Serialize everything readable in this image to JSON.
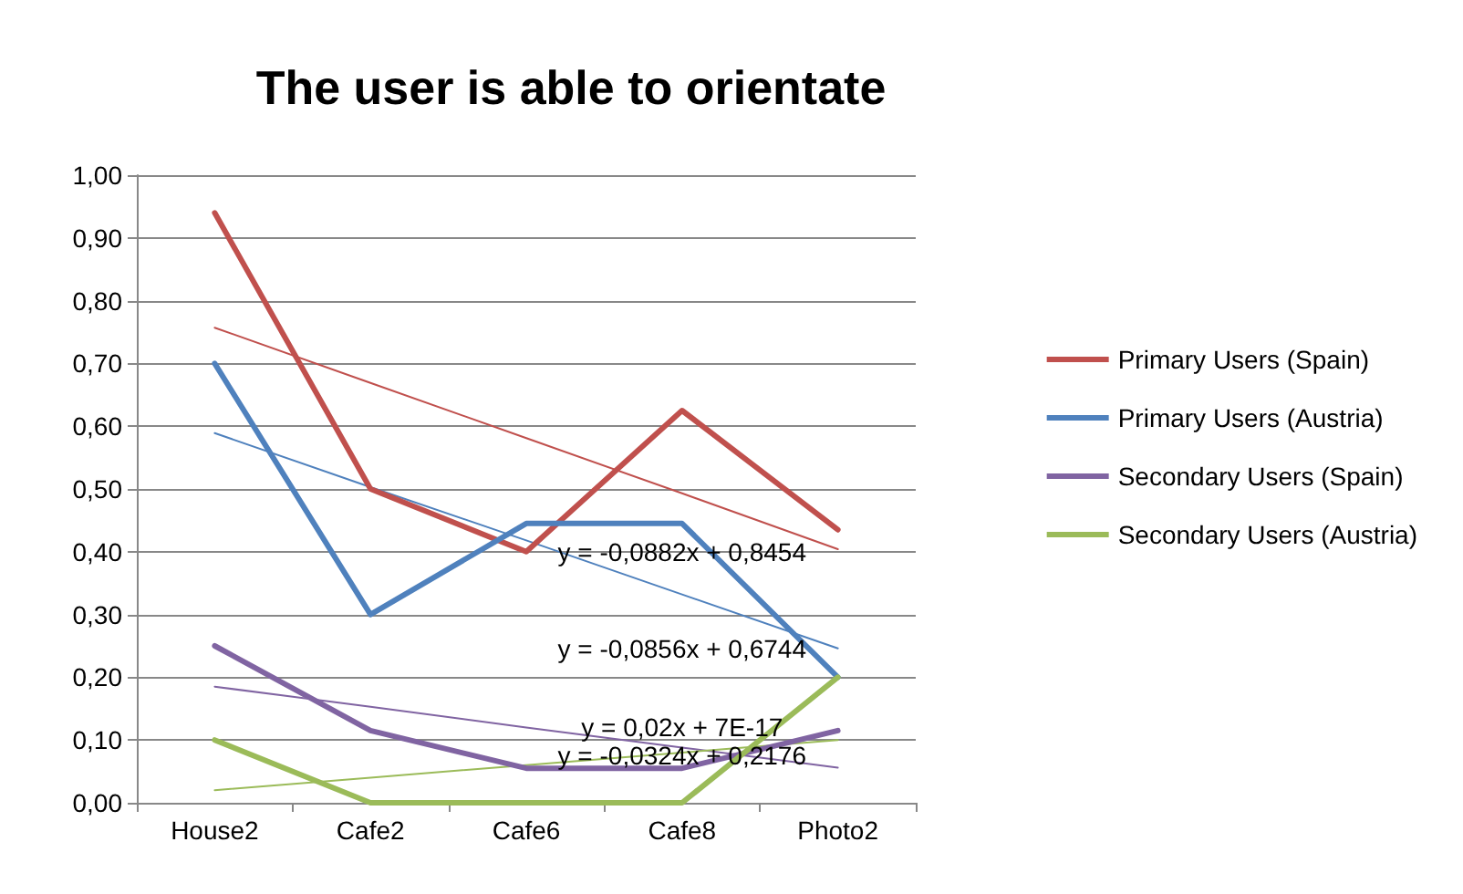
{
  "chart_data": {
    "type": "line",
    "title": "The user is able to orientate",
    "categories": [
      "House2",
      "Cafe2",
      "Cafe6",
      "Cafe8",
      "Photo2"
    ],
    "series": [
      {
        "name": "Primary Users (Spain)",
        "color": "#c0504d",
        "values": [
          0.94,
          0.5,
          0.4,
          0.625,
          0.435
        ]
      },
      {
        "name": "Primary Users (Austria)",
        "color": "#4f81bd",
        "values": [
          0.7,
          0.3,
          0.445,
          0.445,
          0.2
        ]
      },
      {
        "name": "Secondary Users (Spain)",
        "color": "#8064a2",
        "values": [
          0.25,
          0.115,
          0.055,
          0.055,
          0.115
        ]
      },
      {
        "name": "Secondary Users (Austria)",
        "color": "#9bbb59",
        "values": [
          0.1,
          0,
          0,
          0,
          0.2
        ]
      },
      {
        "type": "line",
        "color": "#c0504d",
        "values": [
          0.757,
          0.669,
          0.581,
          0.493,
          0.404
        ]
      },
      {
        "type": "line",
        "color": "#4f81bd",
        "values": [
          0.589,
          0.503,
          0.418,
          0.332,
          0.246
        ]
      },
      {
        "type": "line",
        "color": "#8064a2",
        "values": [
          0.185,
          0.153,
          0.12,
          0.088,
          0.056
        ]
      },
      {
        "type": "line",
        "color": "#9bbb59",
        "values": [
          0.02,
          0.04,
          0.06,
          0.08,
          0.1
        ]
      }
    ],
    "ylim": [
      0,
      1
    ],
    "yticks": [
      {
        "value": 0,
        "label": "0,00"
      },
      {
        "value": 0.1,
        "label": "0,10"
      },
      {
        "value": 0.2,
        "label": "0,20"
      },
      {
        "value": 0.3,
        "label": "0,30"
      },
      {
        "value": 0.4,
        "label": "0,40"
      },
      {
        "value": 0.5,
        "label": "0,50"
      },
      {
        "value": 0.6,
        "label": "0,60"
      },
      {
        "value": 0.7,
        "label": "0,70"
      },
      {
        "value": 0.8,
        "label": "0,80"
      },
      {
        "value": 0.9,
        "label": "0,90"
      },
      {
        "value": 1,
        "label": "1,00"
      }
    ],
    "annotations": [
      "y = -0,0882x + 0,8454",
      "y = -0,0856x + 0,6744",
      "y = 0,02x + 7E-17",
      "y = -0,0324x + 0,2176"
    ],
    "grid": "y",
    "legend": "right",
    "marker": "none",
    "line_style": "solid"
  }
}
